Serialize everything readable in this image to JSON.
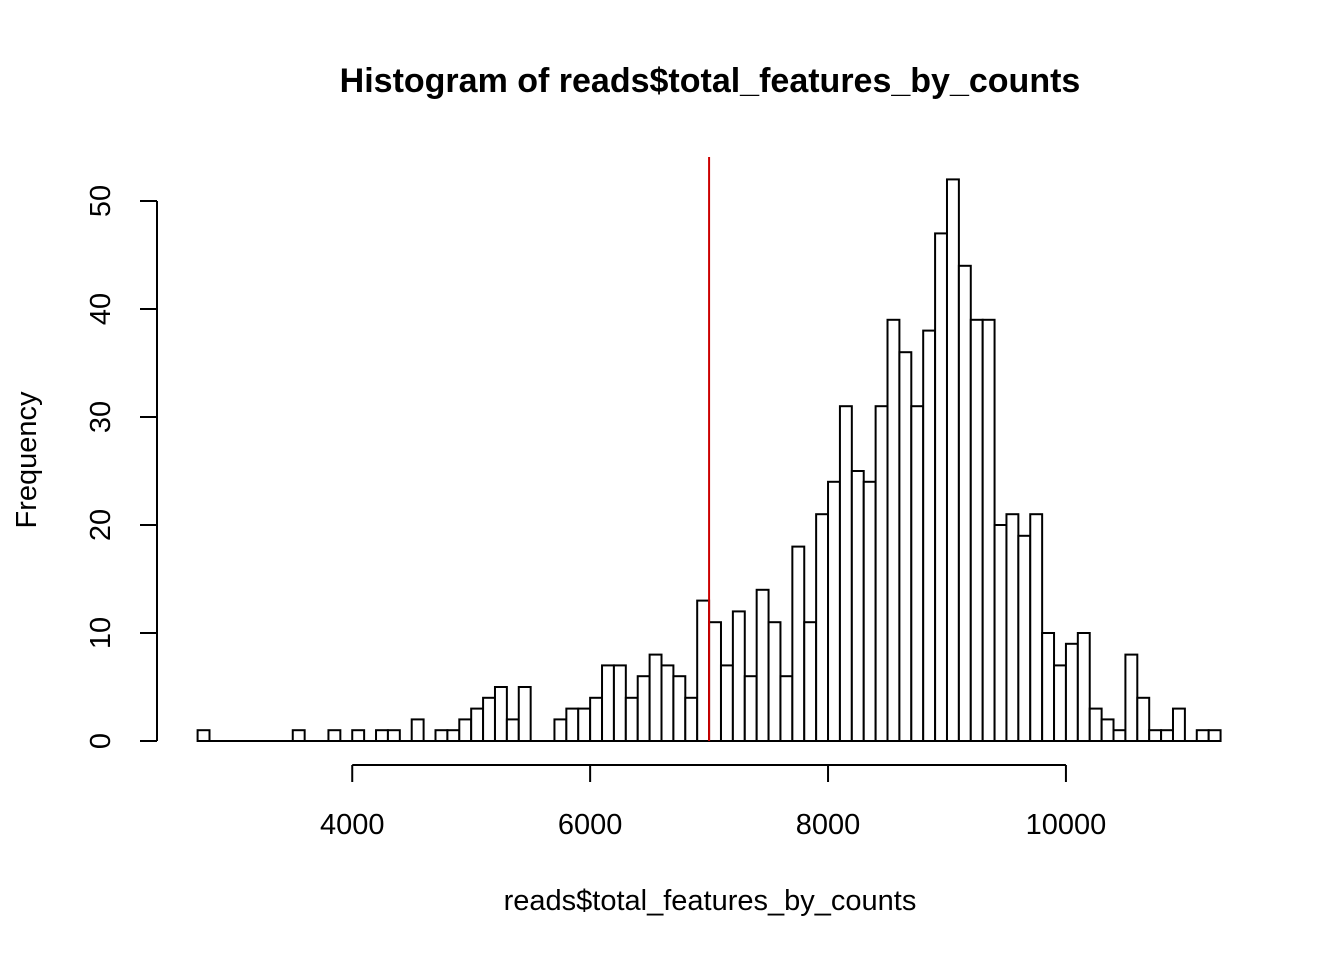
{
  "chart_data": {
    "type": "bar",
    "title": "Histogram of reads$total_features_by_counts",
    "xlabel": "reads$total_features_by_counts",
    "ylabel": "Frequency",
    "bin_width": 100,
    "x_bins_start": [
      2700,
      2800,
      2900,
      3000,
      3100,
      3200,
      3300,
      3400,
      3500,
      3600,
      3700,
      3800,
      3900,
      4000,
      4100,
      4200,
      4300,
      4400,
      4500,
      4600,
      4700,
      4800,
      4900,
      5000,
      5100,
      5200,
      5300,
      5400,
      5500,
      5600,
      5700,
      5800,
      5900,
      6000,
      6100,
      6200,
      6300,
      6400,
      6500,
      6600,
      6700,
      6800,
      6900,
      7000,
      7100,
      7200,
      7300,
      7400,
      7500,
      7600,
      7700,
      7800,
      7900,
      8000,
      8100,
      8200,
      8300,
      8400,
      8500,
      8600,
      8700,
      8800,
      8900,
      9000,
      9100,
      9200,
      9300,
      9400,
      9500,
      9600,
      9700,
      9800,
      9900,
      10000,
      10100,
      10200,
      10300,
      10400,
      10500,
      10600,
      10700,
      10800,
      10900,
      11000,
      11100,
      11200
    ],
    "values": [
      1,
      0,
      0,
      0,
      0,
      0,
      0,
      0,
      1,
      0,
      0,
      1,
      0,
      1,
      0,
      1,
      1,
      0,
      2,
      0,
      1,
      1,
      2,
      3,
      4,
      5,
      2,
      5,
      0,
      0,
      2,
      3,
      3,
      4,
      7,
      7,
      4,
      6,
      8,
      7,
      6,
      4,
      13,
      11,
      7,
      12,
      6,
      14,
      11,
      6,
      18,
      11,
      21,
      24,
      31,
      25,
      24,
      31,
      39,
      36,
      31,
      38,
      47,
      52,
      44,
      39,
      39,
      20,
      21,
      19,
      21,
      10,
      7,
      9,
      10,
      3,
      2,
      1,
      8,
      4,
      1,
      1,
      3,
      0,
      1,
      1
    ],
    "xlim": [
      2700,
      11300
    ],
    "ylim": [
      0,
      52
    ],
    "x_ticks": [
      4000,
      6000,
      8000,
      10000
    ],
    "x_tick_labels": [
      "4000",
      "6000",
      "8000",
      "10000"
    ],
    "y_ticks": [
      0,
      10,
      20,
      30,
      40,
      50
    ],
    "y_tick_labels": [
      "0",
      "10",
      "20",
      "30",
      "40",
      "50"
    ],
    "vline": {
      "x": 7000,
      "color": "#cc0000"
    },
    "bar_fill": "#ffffff",
    "bar_stroke": "#000000",
    "grid": false,
    "legend": "none"
  }
}
